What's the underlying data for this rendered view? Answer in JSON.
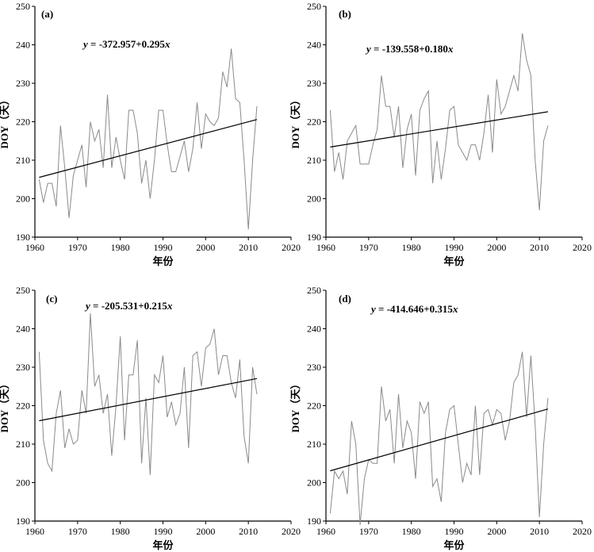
{
  "chart_data": [
    {
      "type": "line",
      "panel": "(a)",
      "equation": {
        "prefix": "y",
        "body": " = -372.957+0.295",
        "var": "x"
      },
      "xlabel": "年份",
      "ylabel": "DOY（天）",
      "xlim": [
        1960,
        2020
      ],
      "ylim": [
        190,
        250
      ],
      "x_ticks": [
        1960,
        1970,
        1980,
        1990,
        2000,
        2010,
        2020
      ],
      "y_ticks": [
        190,
        200,
        210,
        220,
        230,
        240,
        250
      ],
      "trend": {
        "intercept": -372.957,
        "slope": 0.295,
        "x_range": [
          1961,
          2012
        ]
      },
      "x": [
        1961,
        1962,
        1963,
        1964,
        1965,
        1966,
        1967,
        1968,
        1969,
        1970,
        1971,
        1972,
        1973,
        1974,
        1975,
        1976,
        1977,
        1978,
        1979,
        1980,
        1981,
        1982,
        1983,
        1984,
        1985,
        1986,
        1987,
        1988,
        1989,
        1990,
        1991,
        1992,
        1993,
        1994,
        1995,
        1996,
        1997,
        1998,
        1999,
        2000,
        2001,
        2002,
        2003,
        2004,
        2005,
        2006,
        2007,
        2008,
        2009,
        2010,
        2011,
        2012
      ],
      "values": [
        205,
        199,
        204,
        204,
        198,
        219,
        208,
        195,
        206,
        210,
        214,
        203,
        220,
        215,
        218,
        208,
        227,
        208,
        216,
        210,
        205,
        223,
        223,
        217,
        204,
        210,
        200,
        210,
        223,
        223,
        214,
        207,
        207,
        211,
        215,
        207,
        213,
        225,
        213,
        222,
        220,
        219,
        221,
        233,
        229,
        239,
        226,
        225,
        210,
        192,
        210,
        224
      ]
    },
    {
      "type": "line",
      "panel": "(b)",
      "equation": {
        "prefix": "y",
        "body": " = -139.558+0.180",
        "var": "x"
      },
      "xlabel": "年份",
      "ylabel": "DOY（天）",
      "xlim": [
        1960,
        2020
      ],
      "ylim": [
        190,
        250
      ],
      "x_ticks": [
        1960,
        1970,
        1980,
        1990,
        2000,
        2010,
        2020
      ],
      "y_ticks": [
        190,
        200,
        210,
        220,
        230,
        240,
        250
      ],
      "trend": {
        "intercept": -139.558,
        "slope": 0.18,
        "x_range": [
          1961,
          2012
        ]
      },
      "x": [
        1961,
        1962,
        1963,
        1964,
        1965,
        1966,
        1967,
        1968,
        1969,
        1970,
        1971,
        1972,
        1973,
        1974,
        1975,
        1976,
        1977,
        1978,
        1979,
        1980,
        1981,
        1982,
        1983,
        1984,
        1985,
        1986,
        1987,
        1988,
        1989,
        1990,
        1991,
        1992,
        1993,
        1994,
        1995,
        1996,
        1997,
        1998,
        1999,
        2000,
        2001,
        2002,
        2003,
        2004,
        2005,
        2006,
        2007,
        2008,
        2009,
        2010,
        2011,
        2012
      ],
      "values": [
        223,
        207,
        212,
        205,
        215,
        217,
        219,
        209,
        209,
        209,
        214,
        218,
        232,
        224,
        224,
        216,
        224,
        208,
        218,
        222,
        206,
        223,
        226,
        228,
        204,
        215,
        205,
        213,
        223,
        224,
        214,
        212,
        210,
        214,
        214,
        210,
        217,
        227,
        212,
        231,
        222,
        224,
        228,
        232,
        228,
        243,
        236,
        232,
        210,
        197,
        215,
        219
      ]
    },
    {
      "type": "line",
      "panel": "(c)",
      "equation": {
        "prefix": "y",
        "body": " = -205.531+0.215",
        "var": "x"
      },
      "xlabel": "年份",
      "ylabel": "DOY（天）",
      "xlim": [
        1960,
        2020
      ],
      "ylim": [
        190,
        250
      ],
      "x_ticks": [
        1960,
        1970,
        1980,
        1990,
        2000,
        2010,
        2020
      ],
      "y_ticks": [
        190,
        200,
        210,
        220,
        230,
        240,
        250
      ],
      "trend": {
        "intercept": -205.531,
        "slope": 0.215,
        "x_range": [
          1961,
          2012
        ]
      },
      "x": [
        1961,
        1962,
        1963,
        1964,
        1965,
        1966,
        1967,
        1968,
        1969,
        1970,
        1971,
        1972,
        1973,
        1974,
        1975,
        1976,
        1977,
        1978,
        1979,
        1980,
        1981,
        1982,
        1983,
        1984,
        1985,
        1986,
        1987,
        1988,
        1989,
        1990,
        1991,
        1992,
        1993,
        1994,
        1995,
        1996,
        1997,
        1998,
        1999,
        2000,
        2001,
        2002,
        2003,
        2004,
        2005,
        2006,
        2007,
        2008,
        2009,
        2010,
        2011,
        2012
      ],
      "values": [
        234,
        211,
        205,
        203,
        218,
        224,
        209,
        214,
        210,
        211,
        224,
        218,
        244,
        225,
        228,
        218,
        223,
        207,
        220,
        238,
        211,
        228,
        228,
        237,
        205,
        222,
        202,
        228,
        226,
        233,
        217,
        221,
        215,
        218,
        230,
        209,
        233,
        234,
        225,
        235,
        236,
        240,
        228,
        233,
        233,
        226,
        222,
        232,
        212,
        205,
        230,
        223
      ]
    },
    {
      "type": "line",
      "panel": "(d)",
      "equation": {
        "prefix": "y",
        "body": " = -414.646+0.315",
        "var": "x"
      },
      "xlabel": "年份",
      "ylabel": "DOY（天）",
      "xlim": [
        1960,
        2020
      ],
      "ylim": [
        190,
        250
      ],
      "x_ticks": [
        1960,
        1970,
        1980,
        1990,
        2000,
        2010,
        2020
      ],
      "y_ticks": [
        190,
        200,
        210,
        220,
        230,
        240,
        250
      ],
      "trend": {
        "intercept": -414.646,
        "slope": 0.315,
        "x_range": [
          1961,
          2012
        ]
      },
      "x": [
        1961,
        1962,
        1963,
        1964,
        1965,
        1966,
        1967,
        1968,
        1969,
        1970,
        1971,
        1972,
        1973,
        1974,
        1975,
        1976,
        1977,
        1978,
        1979,
        1980,
        1981,
        1982,
        1983,
        1984,
        1985,
        1986,
        1987,
        1988,
        1989,
        1990,
        1991,
        1992,
        1993,
        1994,
        1995,
        1996,
        1997,
        1998,
        1999,
        2000,
        2001,
        2002,
        2003,
        2004,
        2005,
        2006,
        2007,
        2008,
        2009,
        2010,
        2011,
        2012
      ],
      "values": [
        192,
        203,
        201,
        203,
        197,
        216,
        210,
        189,
        201,
        206,
        205,
        205,
        225,
        216,
        219,
        205,
        223,
        209,
        216,
        213,
        201,
        221,
        218,
        221,
        199,
        201,
        195,
        213,
        219,
        220,
        210,
        200,
        205,
        202,
        220,
        202,
        218,
        219,
        215,
        219,
        218,
        211,
        216,
        226,
        228,
        234,
        217,
        233,
        215,
        191,
        210,
        222
      ]
    }
  ]
}
